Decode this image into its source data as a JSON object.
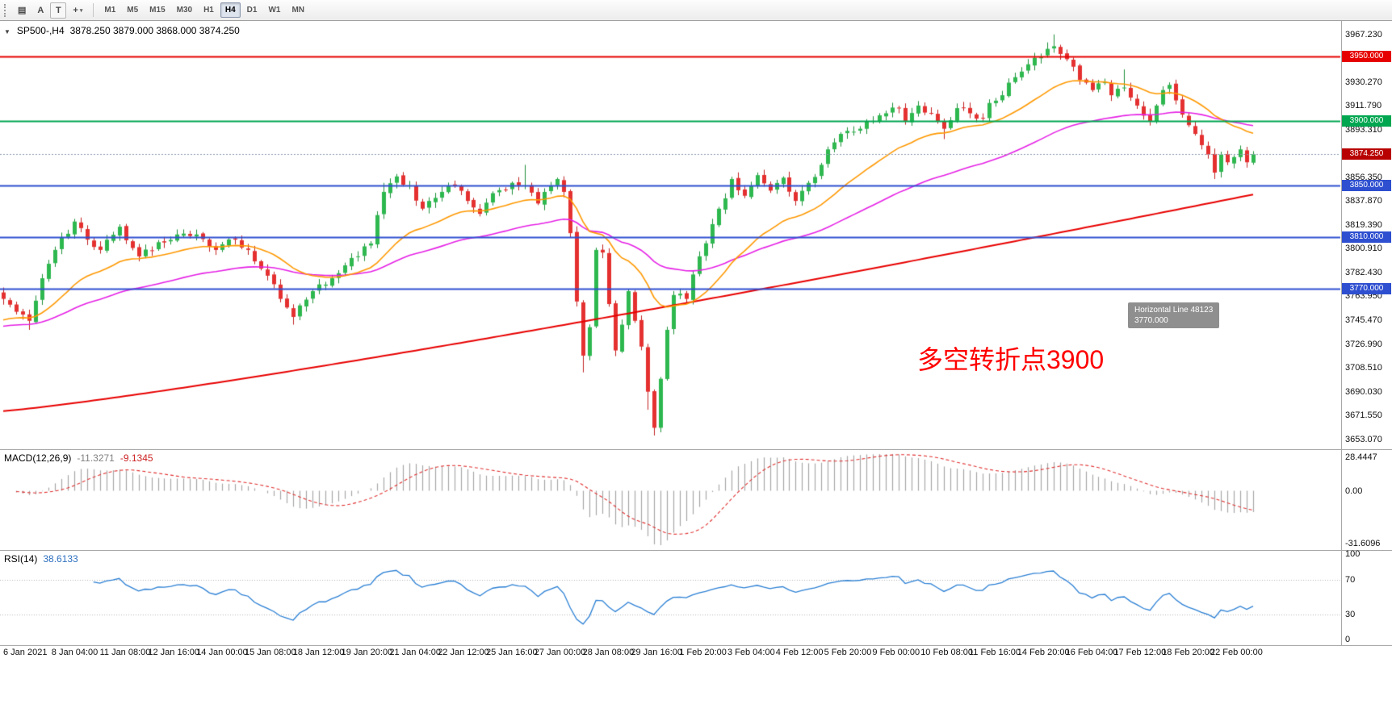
{
  "toolbar": {
    "timeframes": [
      "M1",
      "M5",
      "M15",
      "M30",
      "H1",
      "H4",
      "D1",
      "W1",
      "MN"
    ],
    "active_timeframe": "H4",
    "text_label_icon": "A",
    "text_box_icon": "T",
    "cursor_icon": "+",
    "charts_icon": "▤",
    "caret": "▾"
  },
  "main_chart": {
    "collapse_icon": "▼",
    "title": "SP500-,H4",
    "ohlc": "3878.250 3879.000 3868.000 3874.250",
    "annotation": {
      "text": "多空转折点3900",
      "color": "#ff0000"
    },
    "tooltip": {
      "line1": "Horizontal Line 48123",
      "line2": "3770.000"
    },
    "current_price": {
      "value": "3874.250",
      "price": 3874.25,
      "color": "#b80000"
    },
    "levels": [
      {
        "price": 3950,
        "label": "3950.000",
        "color": "#e60000",
        "width": 2
      },
      {
        "price": 3900,
        "label": "3900.000",
        "color": "#00a650",
        "width": 2
      },
      {
        "price": 3850,
        "label": "3850.000",
        "color": "#2e4fd0",
        "width": 2
      },
      {
        "price": 3810,
        "label": "3810.000",
        "color": "#2e4fd0",
        "width": 2
      },
      {
        "price": 3770,
        "label": "3770.000",
        "color": "#2e4fd0",
        "width": 2
      }
    ],
    "price_axis": {
      "start": 3967.23,
      "step": 18.48,
      "count": 18,
      "decimals": 3,
      "price_top": 3977.0,
      "price_bottom": 3646.0
    }
  },
  "chart_data": {
    "type": "candlestick",
    "symbol": "SP500-",
    "period": "H4",
    "title": "SP500-,H4 3878.250 3879.000 3868.000 3874.250",
    "ylim": [
      3646.0,
      3977.0
    ],
    "bars": 195,
    "close_waypoints": [
      [
        0,
        3762
      ],
      [
        2,
        3752
      ],
      [
        4,
        3745
      ],
      [
        6,
        3778
      ],
      [
        8,
        3800
      ],
      [
        11,
        3822
      ],
      [
        13,
        3808
      ],
      [
        15,
        3800
      ],
      [
        18,
        3818
      ],
      [
        21,
        3795
      ],
      [
        24,
        3806
      ],
      [
        27,
        3812
      ],
      [
        30,
        3812
      ],
      [
        33,
        3800
      ],
      [
        36,
        3808
      ],
      [
        38,
        3800
      ],
      [
        41,
        3780
      ],
      [
        43,
        3762
      ],
      [
        45,
        3748
      ],
      [
        48,
        3768
      ],
      [
        51,
        3778
      ],
      [
        53,
        3788
      ],
      [
        55,
        3795
      ],
      [
        57,
        3805
      ],
      [
        59,
        3845
      ],
      [
        61,
        3857
      ],
      [
        63,
        3850
      ],
      [
        65,
        3832
      ],
      [
        68,
        3845
      ],
      [
        70,
        3850
      ],
      [
        72,
        3838
      ],
      [
        74,
        3828
      ],
      [
        76,
        3844
      ],
      [
        79,
        3852
      ],
      [
        81,
        3850
      ],
      [
        83,
        3836
      ],
      [
        85,
        3850
      ],
      [
        86,
        3855
      ],
      [
        87,
        3845
      ],
      [
        88,
        3813
      ],
      [
        89,
        3760
      ],
      [
        90,
        3718
      ],
      [
        91,
        3740
      ],
      [
        92,
        3800
      ],
      [
        93,
        3798
      ],
      [
        94,
        3758
      ],
      [
        95,
        3722
      ],
      [
        96,
        3742
      ],
      [
        97,
        3768
      ],
      [
        98,
        3745
      ],
      [
        99,
        3725
      ],
      [
        100,
        3690
      ],
      [
        101,
        3662
      ],
      [
        102,
        3700
      ],
      [
        103,
        3738
      ],
      [
        104,
        3765
      ],
      [
        106,
        3762
      ],
      [
        108,
        3795
      ],
      [
        110,
        3820
      ],
      [
        112,
        3840
      ],
      [
        113,
        3855
      ],
      [
        115,
        3842
      ],
      [
        117,
        3858
      ],
      [
        119,
        3846
      ],
      [
        121,
        3856
      ],
      [
        123,
        3838
      ],
      [
        125,
        3852
      ],
      [
        127,
        3866
      ],
      [
        128,
        3878
      ],
      [
        130,
        3890
      ],
      [
        133,
        3894
      ],
      [
        135,
        3900
      ],
      [
        137,
        3906
      ],
      [
        139,
        3910
      ],
      [
        140,
        3900
      ],
      [
        142,
        3912
      ],
      [
        144,
        3906
      ],
      [
        146,
        3894
      ],
      [
        148,
        3910
      ],
      [
        150,
        3906
      ],
      [
        152,
        3902
      ],
      [
        153,
        3914
      ],
      [
        155,
        3920
      ],
      [
        157,
        3934
      ],
      [
        159,
        3944
      ],
      [
        161,
        3950
      ],
      [
        163,
        3958
      ],
      [
        164,
        3952
      ],
      [
        165,
        3948
      ],
      [
        167,
        3932
      ],
      [
        169,
        3924
      ],
      [
        171,
        3930
      ],
      [
        172,
        3920
      ],
      [
        174,
        3926
      ],
      [
        176,
        3912
      ],
      [
        178,
        3900
      ],
      [
        179,
        3912
      ],
      [
        180,
        3924
      ],
      [
        181,
        3928
      ],
      [
        182,
        3916
      ],
      [
        183,
        3905
      ],
      [
        185,
        3890
      ],
      [
        187,
        3874
      ],
      [
        188,
        3860
      ],
      [
        189,
        3874
      ],
      [
        190,
        3868
      ],
      [
        191,
        3872
      ],
      [
        192,
        3878
      ],
      [
        193,
        3868
      ],
      [
        194,
        3874.25
      ]
    ],
    "wick_overrides": [
      {
        "bar": 4,
        "low": 3738
      },
      {
        "bar": 45,
        "low": 3742
      },
      {
        "bar": 59,
        "high": 3852
      },
      {
        "bar": 81,
        "high": 3866
      },
      {
        "bar": 90,
        "low": 3705
      },
      {
        "bar": 100,
        "low": 3676
      },
      {
        "bar": 101,
        "low": 3656
      },
      {
        "bar": 146,
        "low": 3886
      },
      {
        "bar": 162,
        "high": 3961
      },
      {
        "bar": 163,
        "high": 3967.2
      },
      {
        "bar": 174,
        "high": 3940
      },
      {
        "bar": 188,
        "low": 3855
      }
    ],
    "moving_averages": [
      {
        "name": "fast",
        "period": 21,
        "color": "#ff9800",
        "seed_offset": -18
      },
      {
        "name": "medium",
        "period": 55,
        "color": "#e520e5",
        "seed_offset": -22
      },
      {
        "name": "slow",
        "color": "#e80000",
        "start": 3675,
        "end": 3843,
        "curve": 1.15
      }
    ]
  },
  "macd": {
    "label": "MACD(12,26,9)",
    "main_value": "-11.3271",
    "signal_value": "-9.1345",
    "fast": 12,
    "slow": 26,
    "signal": 9,
    "axis_labels": [
      "28.4447",
      "0.00",
      "-31.6096"
    ],
    "histogram_color": "#a6a6a6",
    "signal_color": "#e03030"
  },
  "rsi": {
    "label": "RSI(14)",
    "value": "38.6133",
    "period": 14,
    "axis_labels": [
      "100",
      "70",
      "30",
      "0"
    ],
    "levels": [
      70,
      30
    ],
    "color": "#2a7fd4"
  },
  "time_axis": {
    "labels": [
      "6 Jan 2021",
      "8 Jan 04:00",
      "11 Jan 08:00",
      "12 Jan 16:00",
      "14 Jan 00:00",
      "15 Jan 08:00",
      "18 Jan 12:00",
      "19 Jan 20:00",
      "21 Jan 04:00",
      "22 Jan 12:00",
      "25 Jan 16:00",
      "27 Jan 00:00",
      "28 Jan 08:00",
      "29 Jan 16:00",
      "1 Feb 20:00",
      "3 Feb 04:00",
      "4 Feb 12:00",
      "5 Feb 20:00",
      "9 Feb 00:00",
      "10 Feb 08:00",
      "11 Feb 16:00",
      "14 Feb 20:00",
      "16 Feb 04:00",
      "17 Feb 12:00",
      "18 Feb 20:00",
      "22 Feb 00:00"
    ]
  },
  "colors": {
    "up": "#2eb84f",
    "up_border": "#1e8f3a",
    "down": "#e53030",
    "down_border": "#c02020",
    "background": "#ffffff",
    "panel_border": "#a8a8a8",
    "current_price_line": "#8a97ad",
    "axis_text": "#111111"
  }
}
